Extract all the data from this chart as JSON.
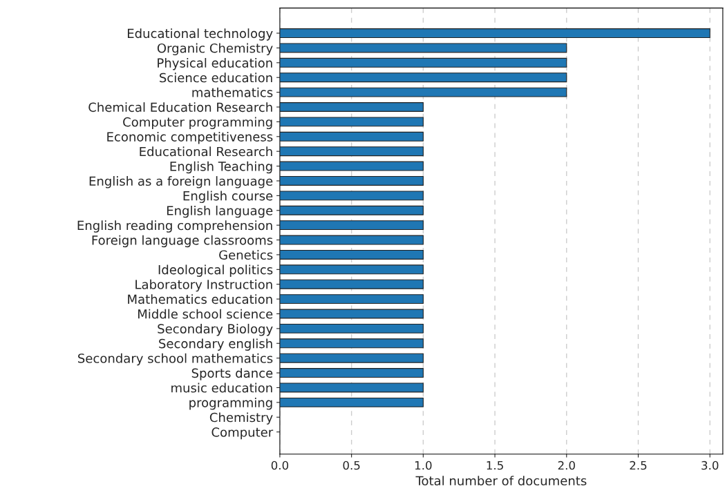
{
  "chart_data": {
    "type": "bar",
    "orientation": "horizontal",
    "xlabel": "Total number of documents",
    "categories": [
      "Educational technology",
      "Organic Chemistry",
      "Physical education",
      "Science education",
      "mathematics",
      "Chemical Education Research",
      "Computer programming",
      "Economic competitiveness",
      "Educational Research",
      "English Teaching",
      "English as a foreign language",
      "English course",
      "English language",
      "English reading comprehension",
      "Foreign language classrooms",
      "Genetics",
      "Ideological politics",
      "Laboratory Instruction",
      "Mathematics education",
      "Middle school science",
      "Secondary Biology",
      "Secondary english",
      "Secondary school mathematics",
      "Sports dance",
      "music education",
      "programming",
      "Chemistry",
      "Computer"
    ],
    "values": [
      3,
      2,
      2,
      2,
      2,
      1,
      1,
      1,
      1,
      1,
      1,
      1,
      1,
      1,
      1,
      1,
      1,
      1,
      1,
      1,
      1,
      1,
      1,
      1,
      1,
      1,
      0,
      0
    ],
    "color": "#1f77b4",
    "xlim": [
      0,
      3.09
    ],
    "xticks": [
      {
        "value": 0,
        "label": "0.0"
      },
      {
        "value": 0.5,
        "label": "0.5"
      },
      {
        "value": 1,
        "label": "1.0"
      },
      {
        "value": 1.5,
        "label": "1.5"
      },
      {
        "value": 2,
        "label": "2.0"
      },
      {
        "value": 2.5,
        "label": "2.5"
      },
      {
        "value": 3,
        "label": "3.0"
      }
    ],
    "grid": "x",
    "line_style": "dashed"
  }
}
